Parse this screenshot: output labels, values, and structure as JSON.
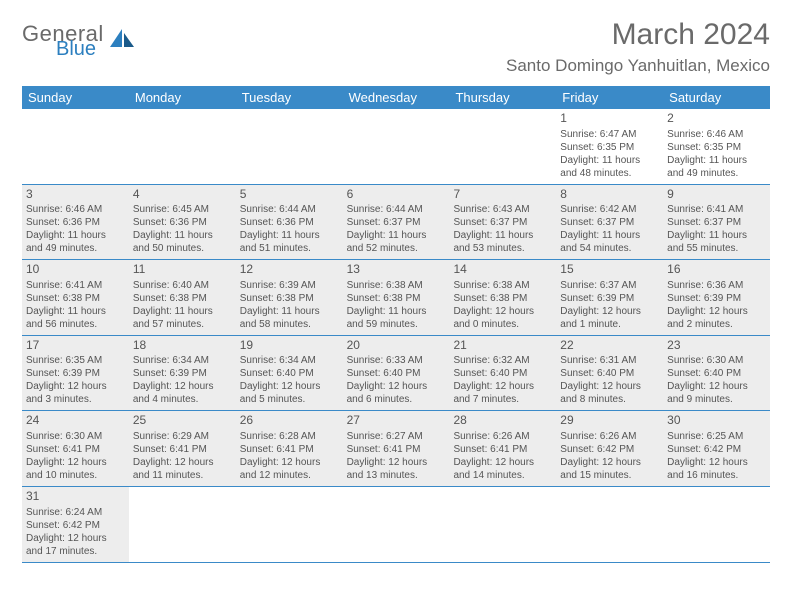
{
  "brand": {
    "general": "General",
    "blue": "Blue"
  },
  "header": {
    "title": "March 2024",
    "location": "Santo Domingo Yanhuitlan, Mexico"
  },
  "colors": {
    "header_bar": "#3a8ac8",
    "shaded_cell": "#ededed",
    "text": "#555555",
    "brand_blue": "#2c7fbf",
    "page_bg": "#ffffff"
  },
  "weekdays": [
    "Sunday",
    "Monday",
    "Tuesday",
    "Wednesday",
    "Thursday",
    "Friday",
    "Saturday"
  ],
  "weeks": [
    [
      {
        "day": "",
        "lines": [
          "",
          "",
          "",
          ""
        ],
        "shaded": false
      },
      {
        "day": "",
        "lines": [
          "",
          "",
          "",
          ""
        ],
        "shaded": false
      },
      {
        "day": "",
        "lines": [
          "",
          "",
          "",
          ""
        ],
        "shaded": false
      },
      {
        "day": "",
        "lines": [
          "",
          "",
          "",
          ""
        ],
        "shaded": false
      },
      {
        "day": "",
        "lines": [
          "",
          "",
          "",
          ""
        ],
        "shaded": false
      },
      {
        "day": "1",
        "lines": [
          "Sunrise: 6:47 AM",
          "Sunset: 6:35 PM",
          "Daylight: 11 hours",
          "and 48 minutes."
        ],
        "shaded": false
      },
      {
        "day": "2",
        "lines": [
          "Sunrise: 6:46 AM",
          "Sunset: 6:35 PM",
          "Daylight: 11 hours",
          "and 49 minutes."
        ],
        "shaded": false
      }
    ],
    [
      {
        "day": "3",
        "lines": [
          "Sunrise: 6:46 AM",
          "Sunset: 6:36 PM",
          "Daylight: 11 hours",
          "and 49 minutes."
        ],
        "shaded": true
      },
      {
        "day": "4",
        "lines": [
          "Sunrise: 6:45 AM",
          "Sunset: 6:36 PM",
          "Daylight: 11 hours",
          "and 50 minutes."
        ],
        "shaded": true
      },
      {
        "day": "5",
        "lines": [
          "Sunrise: 6:44 AM",
          "Sunset: 6:36 PM",
          "Daylight: 11 hours",
          "and 51 minutes."
        ],
        "shaded": true
      },
      {
        "day": "6",
        "lines": [
          "Sunrise: 6:44 AM",
          "Sunset: 6:37 PM",
          "Daylight: 11 hours",
          "and 52 minutes."
        ],
        "shaded": true
      },
      {
        "day": "7",
        "lines": [
          "Sunrise: 6:43 AM",
          "Sunset: 6:37 PM",
          "Daylight: 11 hours",
          "and 53 minutes."
        ],
        "shaded": true
      },
      {
        "day": "8",
        "lines": [
          "Sunrise: 6:42 AM",
          "Sunset: 6:37 PM",
          "Daylight: 11 hours",
          "and 54 minutes."
        ],
        "shaded": true
      },
      {
        "day": "9",
        "lines": [
          "Sunrise: 6:41 AM",
          "Sunset: 6:37 PM",
          "Daylight: 11 hours",
          "and 55 minutes."
        ],
        "shaded": true
      }
    ],
    [
      {
        "day": "10",
        "lines": [
          "Sunrise: 6:41 AM",
          "Sunset: 6:38 PM",
          "Daylight: 11 hours",
          "and 56 minutes."
        ],
        "shaded": true
      },
      {
        "day": "11",
        "lines": [
          "Sunrise: 6:40 AM",
          "Sunset: 6:38 PM",
          "Daylight: 11 hours",
          "and 57 minutes."
        ],
        "shaded": true
      },
      {
        "day": "12",
        "lines": [
          "Sunrise: 6:39 AM",
          "Sunset: 6:38 PM",
          "Daylight: 11 hours",
          "and 58 minutes."
        ],
        "shaded": true
      },
      {
        "day": "13",
        "lines": [
          "Sunrise: 6:38 AM",
          "Sunset: 6:38 PM",
          "Daylight: 11 hours",
          "and 59 minutes."
        ],
        "shaded": true
      },
      {
        "day": "14",
        "lines": [
          "Sunrise: 6:38 AM",
          "Sunset: 6:38 PM",
          "Daylight: 12 hours",
          "and 0 minutes."
        ],
        "shaded": true
      },
      {
        "day": "15",
        "lines": [
          "Sunrise: 6:37 AM",
          "Sunset: 6:39 PM",
          "Daylight: 12 hours",
          "and 1 minute."
        ],
        "shaded": true
      },
      {
        "day": "16",
        "lines": [
          "Sunrise: 6:36 AM",
          "Sunset: 6:39 PM",
          "Daylight: 12 hours",
          "and 2 minutes."
        ],
        "shaded": true
      }
    ],
    [
      {
        "day": "17",
        "lines": [
          "Sunrise: 6:35 AM",
          "Sunset: 6:39 PM",
          "Daylight: 12 hours",
          "and 3 minutes."
        ],
        "shaded": true
      },
      {
        "day": "18",
        "lines": [
          "Sunrise: 6:34 AM",
          "Sunset: 6:39 PM",
          "Daylight: 12 hours",
          "and 4 minutes."
        ],
        "shaded": true
      },
      {
        "day": "19",
        "lines": [
          "Sunrise: 6:34 AM",
          "Sunset: 6:40 PM",
          "Daylight: 12 hours",
          "and 5 minutes."
        ],
        "shaded": true
      },
      {
        "day": "20",
        "lines": [
          "Sunrise: 6:33 AM",
          "Sunset: 6:40 PM",
          "Daylight: 12 hours",
          "and 6 minutes."
        ],
        "shaded": true
      },
      {
        "day": "21",
        "lines": [
          "Sunrise: 6:32 AM",
          "Sunset: 6:40 PM",
          "Daylight: 12 hours",
          "and 7 minutes."
        ],
        "shaded": true
      },
      {
        "day": "22",
        "lines": [
          "Sunrise: 6:31 AM",
          "Sunset: 6:40 PM",
          "Daylight: 12 hours",
          "and 8 minutes."
        ],
        "shaded": true
      },
      {
        "day": "23",
        "lines": [
          "Sunrise: 6:30 AM",
          "Sunset: 6:40 PM",
          "Daylight: 12 hours",
          "and 9 minutes."
        ],
        "shaded": true
      }
    ],
    [
      {
        "day": "24",
        "lines": [
          "Sunrise: 6:30 AM",
          "Sunset: 6:41 PM",
          "Daylight: 12 hours",
          "and 10 minutes."
        ],
        "shaded": true
      },
      {
        "day": "25",
        "lines": [
          "Sunrise: 6:29 AM",
          "Sunset: 6:41 PM",
          "Daylight: 12 hours",
          "and 11 minutes."
        ],
        "shaded": true
      },
      {
        "day": "26",
        "lines": [
          "Sunrise: 6:28 AM",
          "Sunset: 6:41 PM",
          "Daylight: 12 hours",
          "and 12 minutes."
        ],
        "shaded": true
      },
      {
        "day": "27",
        "lines": [
          "Sunrise: 6:27 AM",
          "Sunset: 6:41 PM",
          "Daylight: 12 hours",
          "and 13 minutes."
        ],
        "shaded": true
      },
      {
        "day": "28",
        "lines": [
          "Sunrise: 6:26 AM",
          "Sunset: 6:41 PM",
          "Daylight: 12 hours",
          "and 14 minutes."
        ],
        "shaded": true
      },
      {
        "day": "29",
        "lines": [
          "Sunrise: 6:26 AM",
          "Sunset: 6:42 PM",
          "Daylight: 12 hours",
          "and 15 minutes."
        ],
        "shaded": true
      },
      {
        "day": "30",
        "lines": [
          "Sunrise: 6:25 AM",
          "Sunset: 6:42 PM",
          "Daylight: 12 hours",
          "and 16 minutes."
        ],
        "shaded": true
      }
    ],
    [
      {
        "day": "31",
        "lines": [
          "Sunrise: 6:24 AM",
          "Sunset: 6:42 PM",
          "Daylight: 12 hours",
          "and 17 minutes."
        ],
        "shaded": true
      },
      {
        "day": "",
        "lines": [
          "",
          "",
          "",
          ""
        ],
        "shaded": false
      },
      {
        "day": "",
        "lines": [
          "",
          "",
          "",
          ""
        ],
        "shaded": false
      },
      {
        "day": "",
        "lines": [
          "",
          "",
          "",
          ""
        ],
        "shaded": false
      },
      {
        "day": "",
        "lines": [
          "",
          "",
          "",
          ""
        ],
        "shaded": false
      },
      {
        "day": "",
        "lines": [
          "",
          "",
          "",
          ""
        ],
        "shaded": false
      },
      {
        "day": "",
        "lines": [
          "",
          "",
          "",
          ""
        ],
        "shaded": false
      }
    ]
  ]
}
